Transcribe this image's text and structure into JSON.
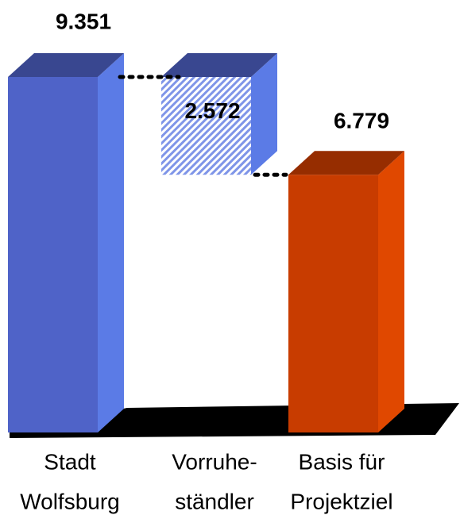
{
  "chart_data": {
    "type": "waterfall",
    "categories": [
      [
        "Stadt",
        "Wolfsburg"
      ],
      [
        "Vorruhe-",
        "ständler"
      ],
      [
        "Basis für",
        "Projektziel"
      ]
    ],
    "values": [
      9351,
      2572,
      6779
    ],
    "value_labels": [
      "9.351",
      "2.572",
      "6.779"
    ],
    "colors": [
      "#4f63c8",
      "#5b7be6",
      "#c83c00"
    ]
  }
}
